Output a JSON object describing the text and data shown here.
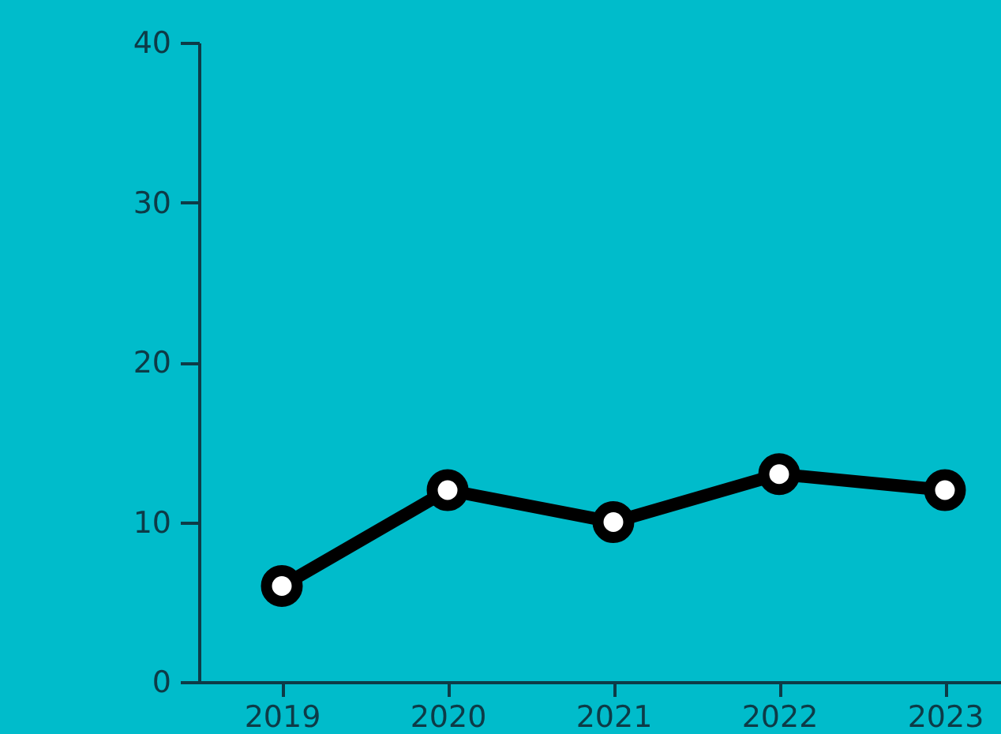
{
  "chart_data": {
    "type": "line",
    "categories": [
      "2019",
      "2020",
      "2021",
      "2022",
      "2023"
    ],
    "series": [
      {
        "color": "#000000",
        "values": [
          6,
          12,
          10,
          13,
          12
        ]
      }
    ],
    "ylim": [
      0,
      40
    ],
    "yticks": [
      0,
      10,
      20,
      30,
      40
    ],
    "grid": false,
    "legend": false,
    "marker": "circle",
    "line_style": "solid"
  }
}
